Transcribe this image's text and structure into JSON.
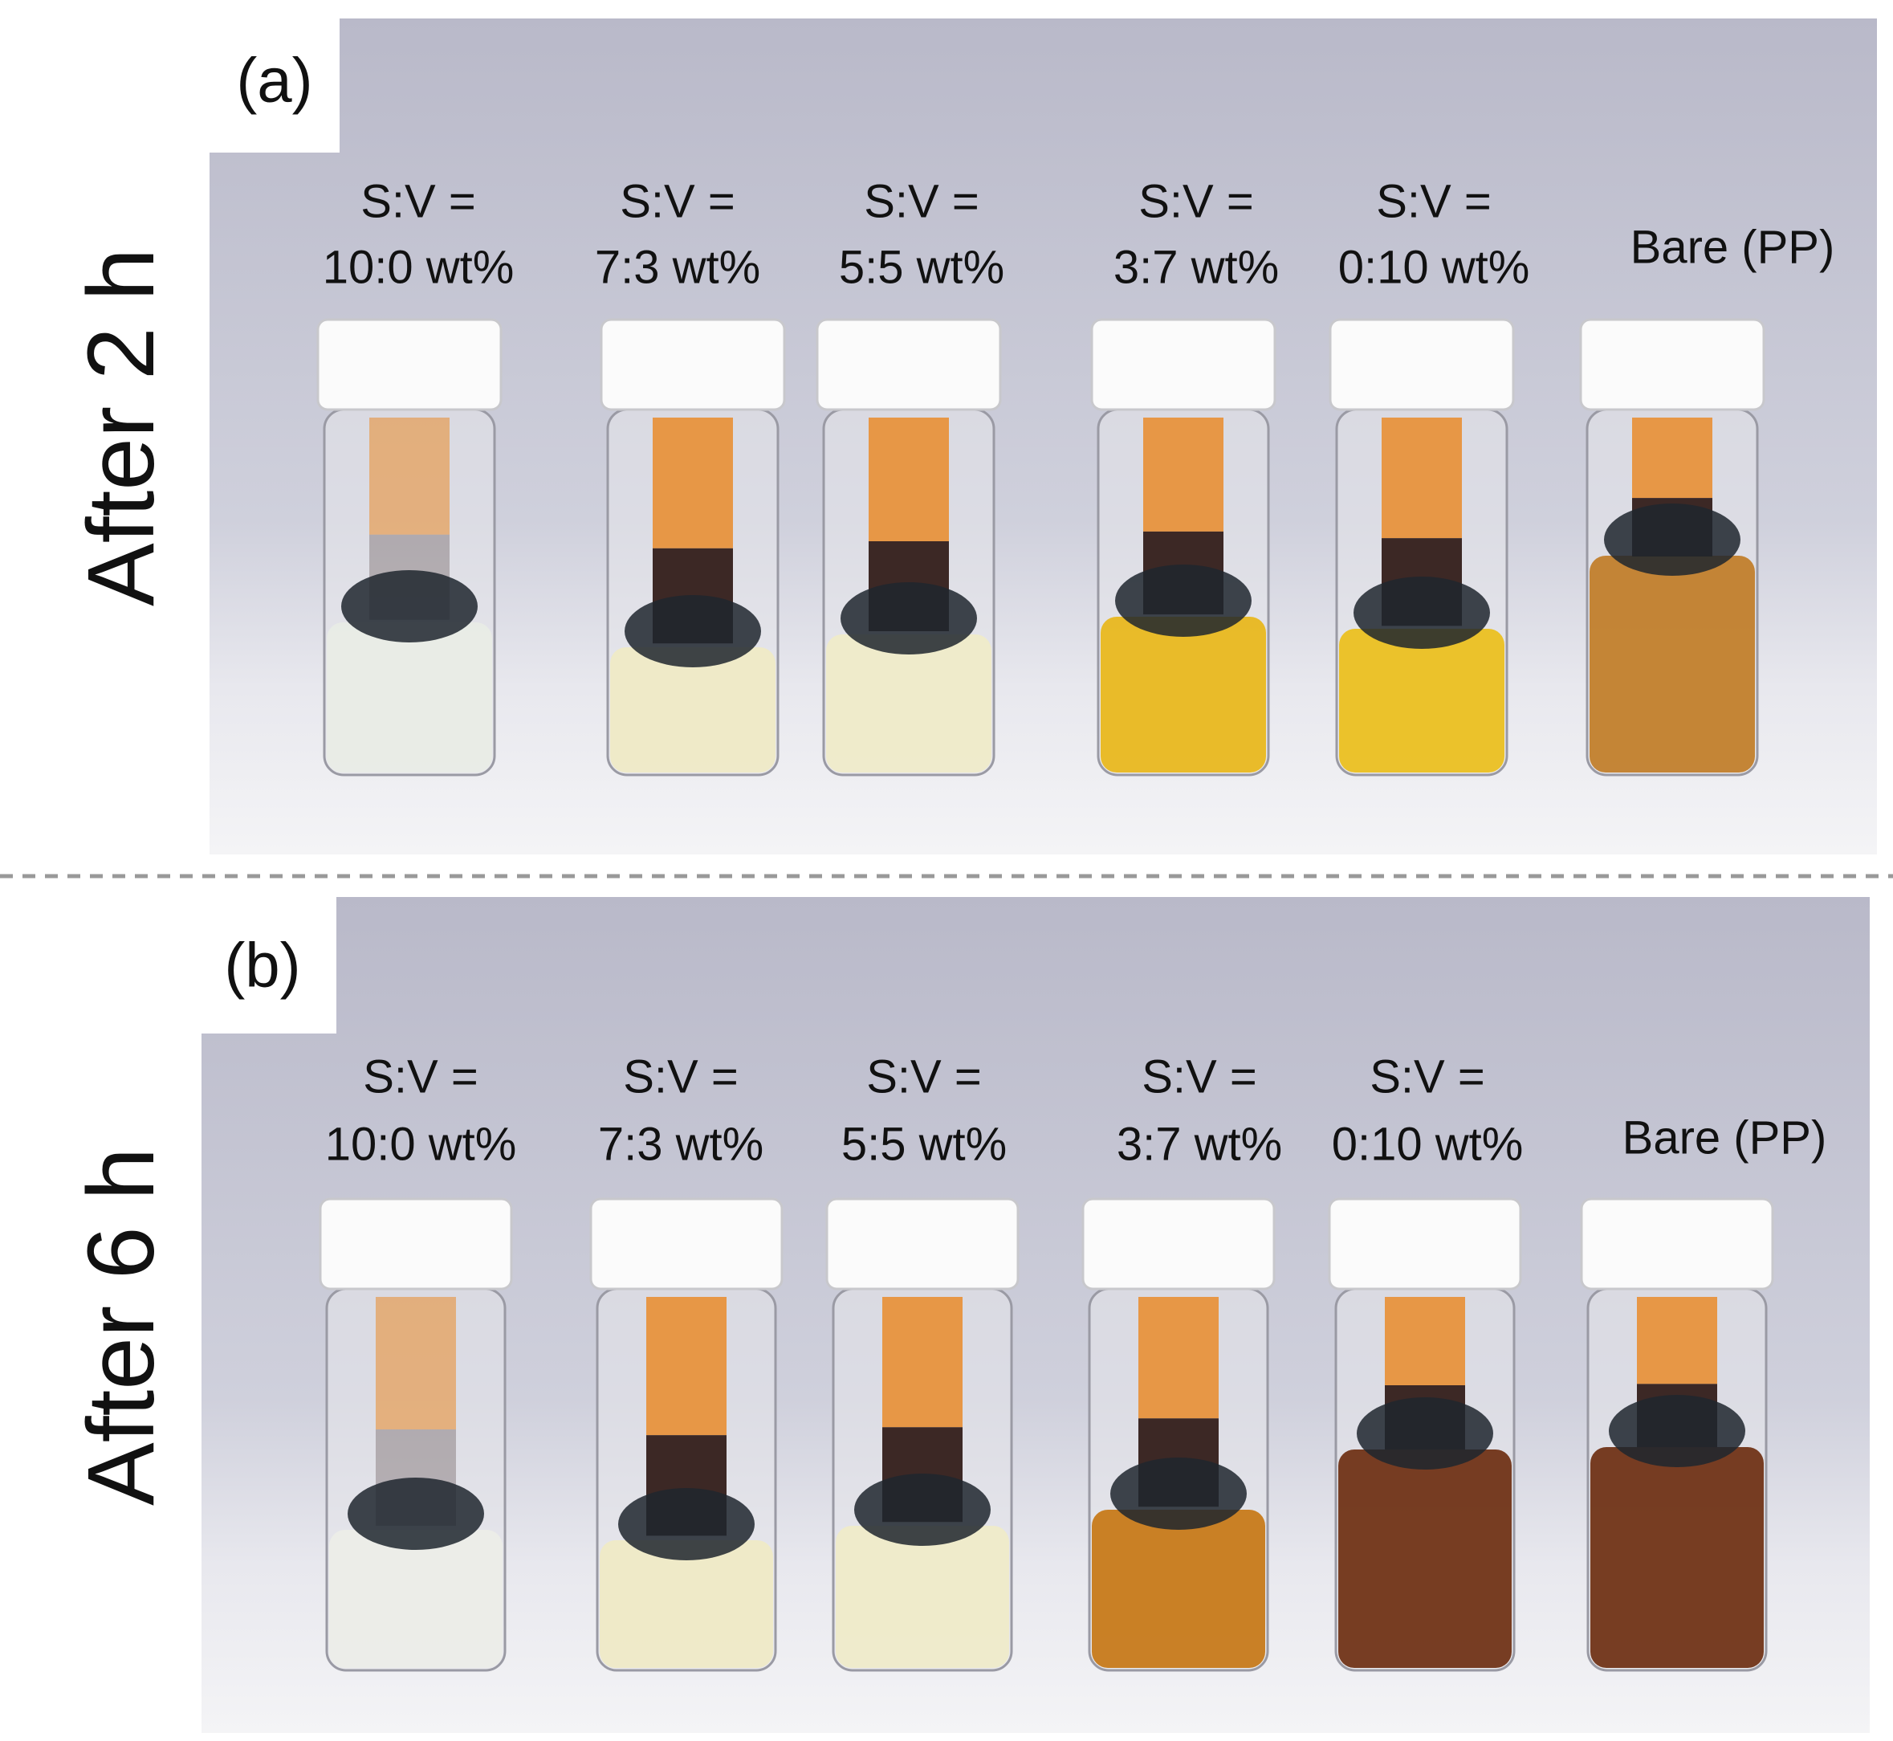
{
  "panels": [
    {
      "label": "(a)",
      "side_label": "After 2 h",
      "vials": [
        {
          "lines": [
            "S:V =",
            "10:0 wt%"
          ]
        },
        {
          "lines": [
            "S:V =",
            "7:3 wt%"
          ]
        },
        {
          "lines": [
            "S:V =",
            "5:5 wt%"
          ]
        },
        {
          "lines": [
            "S:V =",
            "3:7 wt%"
          ]
        },
        {
          "lines": [
            "S:V =",
            "0:10 wt%"
          ]
        },
        {
          "lines": [
            "Bare (PP)"
          ]
        }
      ]
    },
    {
      "label": "(b)",
      "side_label": "After 6 h",
      "vials": [
        {
          "lines": [
            "S:V =",
            "10:0 wt%"
          ]
        },
        {
          "lines": [
            "S:V =",
            "7:3 wt%"
          ]
        },
        {
          "lines": [
            "S:V =",
            "5:5 wt%"
          ]
        },
        {
          "lines": [
            "S:V =",
            "3:7 wt%"
          ]
        },
        {
          "lines": [
            "S:V =",
            "0:10 wt%"
          ]
        },
        {
          "lines": [
            "Bare (PP)"
          ]
        }
      ]
    }
  ]
}
